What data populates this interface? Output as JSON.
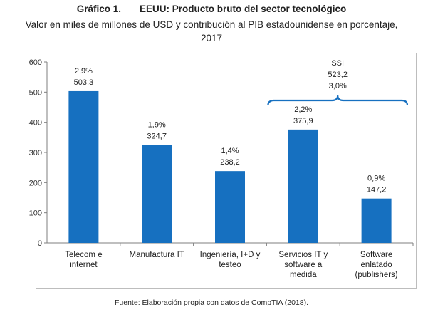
{
  "header": {
    "figure_number": "Gráfico 1.",
    "title": "EEUU: Producto bruto del sector tecnológico",
    "subtitle": "Valor en miles de millones de USD y contribución al PIB estadounidense en porcentaje, 2017"
  },
  "source": "Fuente: Elaboración propia con datos de CompTIA (2018).",
  "colors": {
    "bar": "#1670c0",
    "bracket": "#1670c0",
    "axis": "#7f7f7f"
  },
  "chart_data": {
    "type": "bar",
    "categories": [
      [
        "Telecom e",
        "internet"
      ],
      [
        "Manufactura IT"
      ],
      [
        "Ingeniería, I+D y",
        "testeo"
      ],
      [
        "Servicios IT y",
        "software a",
        "medida"
      ],
      [
        "Software",
        "enlatado",
        "(publishers)"
      ]
    ],
    "values": [
      503.3,
      324.7,
      238.2,
      375.9,
      147.2
    ],
    "value_labels": [
      "503,3",
      "324,7",
      "238,2",
      "375,9",
      "147,2"
    ],
    "pct_labels": [
      "2,9%",
      "1,9%",
      "1,4%",
      "2,2%",
      "0,9%"
    ],
    "ylim": [
      0,
      600
    ],
    "yticks": [
      0,
      100,
      200,
      300,
      400,
      500,
      600
    ],
    "grid": false,
    "annotation": {
      "label": "SSI",
      "value": "523,2",
      "pct": "3,0%",
      "spans_categories": [
        3,
        4
      ]
    }
  }
}
